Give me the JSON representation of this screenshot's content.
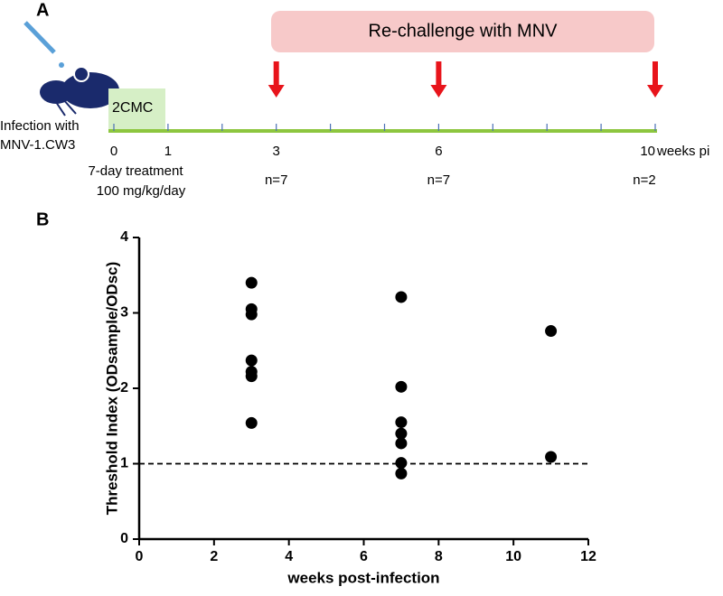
{
  "panels": [
    "A",
    "B"
  ],
  "timeline": {
    "banner": "Re-challenge with MNV",
    "infection": [
      "Infection with",
      "MNV-1.CW3"
    ],
    "treatment_box": "2CMC",
    "ticks": [
      0,
      1,
      3,
      6,
      10
    ],
    "unit": "weeks pi",
    "treatment": [
      "7-day treatment",
      "100 mg/kg/day"
    ],
    "rechallenge": [
      {
        "week": 3,
        "n": "n=7"
      },
      {
        "week": 6,
        "n": "n=7"
      },
      {
        "week": 10,
        "n": "n=2"
      }
    ]
  },
  "chart_data": {
    "type": "scatter",
    "x_label": "weeks post-infection",
    "y_label": "Threshold Index (ODsample/ODsc)",
    "xlim": [
      0,
      12
    ],
    "xticks": [
      0,
      2,
      4,
      6,
      8,
      10,
      12
    ],
    "ylim": [
      0,
      4
    ],
    "yticks": [
      0,
      1,
      2,
      3,
      4
    ],
    "hline": 1,
    "series": [
      {
        "color": "#000000",
        "x": [
          3,
          3,
          3,
          3,
          3,
          3,
          3,
          7,
          7,
          7,
          7,
          7,
          7,
          7,
          11,
          11
        ],
        "values": [
          3.4,
          3.05,
          2.98,
          2.37,
          2.22,
          2.16,
          1.54,
          3.21,
          2.02,
          1.55,
          1.4,
          1.27,
          1.01,
          0.87,
          2.76,
          1.09
        ]
      }
    ]
  }
}
